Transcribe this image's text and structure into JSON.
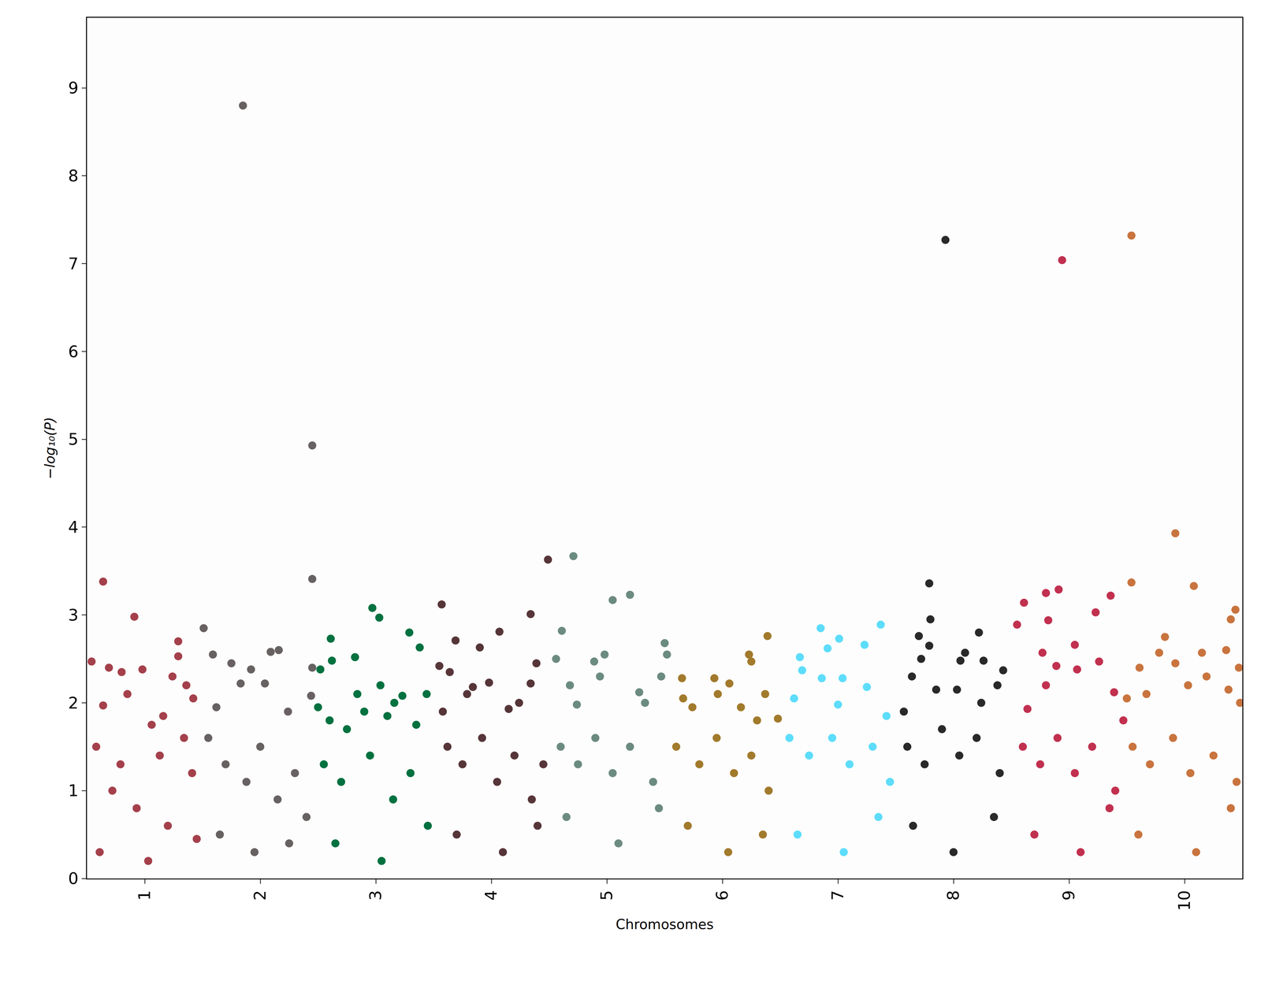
{
  "chart_data": {
    "type": "scatter",
    "xlabel": "Chromosomes",
    "ylabel": "−log₁₀(P)",
    "xlim": [
      0.5,
      10.5
    ],
    "xticks": [
      1,
      2,
      3,
      4,
      5,
      6,
      7,
      8,
      9,
      10
    ],
    "ylim": [
      0,
      9.8
    ],
    "yticks": [
      0,
      1,
      2,
      3,
      4,
      5,
      6,
      7,
      8,
      9
    ],
    "grid": false,
    "marker": "circle",
    "series": [
      {
        "color": "#A4404B",
        "x": [
          0.64,
          0.91,
          0.54,
          1.29,
          1.29,
          0.69,
          0.8,
          0.98,
          1.24,
          1.36,
          0.85,
          0.64,
          1.42,
          1.16,
          1.06,
          0.58,
          0.79,
          1.13,
          1.34,
          0.72,
          0.93,
          1.2,
          1.41,
          0.61,
          1.03,
          1.45
        ],
        "values": [
          3.38,
          2.98,
          2.47,
          2.7,
          2.53,
          2.4,
          2.35,
          2.38,
          2.3,
          2.2,
          2.1,
          1.97,
          2.05,
          1.85,
          1.75,
          1.5,
          1.3,
          1.4,
          1.6,
          1.0,
          0.8,
          0.6,
          1.2,
          0.3,
          0.2,
          0.45
        ]
      },
      {
        "color": "#676162",
        "x": [
          1.85,
          2.45,
          2.45,
          1.51,
          1.59,
          1.75,
          1.92,
          2.16,
          2.09,
          2.04,
          1.83,
          2.45,
          2.44,
          2.24,
          1.62,
          1.55,
          1.7,
          1.88,
          2.0,
          2.15,
          2.3,
          2.4,
          1.65,
          1.95,
          2.25
        ],
        "values": [
          8.8,
          4.93,
          3.41,
          2.85,
          2.55,
          2.45,
          2.38,
          2.6,
          2.58,
          2.22,
          2.22,
          2.4,
          2.08,
          1.9,
          1.95,
          1.6,
          1.3,
          1.1,
          1.5,
          0.9,
          1.2,
          0.7,
          0.5,
          0.3,
          0.4
        ]
      },
      {
        "color": "#027140",
        "x": [
          2.97,
          3.03,
          2.61,
          3.29,
          3.38,
          2.82,
          2.62,
          2.52,
          3.04,
          2.84,
          3.23,
          3.44,
          2.5,
          3.16,
          2.6,
          2.75,
          2.9,
          3.1,
          3.35,
          2.55,
          2.7,
          2.95,
          3.15,
          3.3,
          3.45,
          2.65,
          3.05
        ],
        "values": [
          3.08,
          2.97,
          2.73,
          2.8,
          2.63,
          2.52,
          2.48,
          2.38,
          2.2,
          2.1,
          2.08,
          2.1,
          1.95,
          2.0,
          1.8,
          1.7,
          1.9,
          1.85,
          1.75,
          1.3,
          1.1,
          1.4,
          0.9,
          1.2,
          0.6,
          0.4,
          0.2
        ]
      },
      {
        "color": "#563538",
        "x": [
          4.49,
          3.57,
          4.34,
          3.69,
          4.07,
          3.9,
          3.55,
          4.39,
          3.64,
          3.98,
          3.84,
          4.34,
          3.79,
          4.15,
          3.58,
          4.24,
          3.62,
          3.75,
          3.92,
          4.05,
          4.2,
          4.35,
          4.45,
          3.7,
          4.1,
          4.4
        ],
        "values": [
          3.63,
          3.12,
          3.01,
          2.71,
          2.81,
          2.63,
          2.42,
          2.45,
          2.35,
          2.23,
          2.18,
          2.22,
          2.1,
          1.93,
          1.9,
          2.0,
          1.5,
          1.3,
          1.6,
          1.1,
          1.4,
          0.9,
          1.3,
          0.5,
          0.3,
          0.6
        ]
      },
      {
        "color": "#6C8B80",
        "x": [
          4.71,
          5.2,
          5.05,
          4.61,
          5.5,
          4.98,
          4.56,
          4.89,
          5.52,
          4.68,
          5.47,
          4.94,
          5.28,
          4.74,
          5.33,
          4.6,
          4.75,
          4.9,
          5.05,
          5.2,
          5.4,
          4.65,
          5.1,
          5.45
        ],
        "values": [
          3.67,
          3.23,
          3.17,
          2.82,
          2.68,
          2.55,
          2.5,
          2.47,
          2.55,
          2.2,
          2.3,
          2.3,
          2.12,
          1.98,
          2.0,
          1.5,
          1.3,
          1.6,
          1.2,
          1.5,
          1.1,
          0.7,
          0.4,
          0.8
        ]
      },
      {
        "color": "#A27A2C",
        "x": [
          6.39,
          6.23,
          6.25,
          5.93,
          5.65,
          6.06,
          6.37,
          5.66,
          5.96,
          5.74,
          6.16,
          6.3,
          6.48,
          5.6,
          5.8,
          5.95,
          6.1,
          6.25,
          6.4,
          5.7,
          6.05,
          6.35
        ],
        "values": [
          2.76,
          2.55,
          2.47,
          2.28,
          2.28,
          2.22,
          2.1,
          2.05,
          2.1,
          1.95,
          1.95,
          1.8,
          1.82,
          1.5,
          1.3,
          1.6,
          1.2,
          1.4,
          1.0,
          0.6,
          0.3,
          0.5
        ]
      },
      {
        "color": "#5DDDFB",
        "x": [
          7.37,
          6.85,
          7.01,
          7.23,
          6.67,
          6.91,
          6.69,
          6.86,
          7.04,
          7.25,
          7.0,
          6.62,
          7.42,
          6.58,
          6.75,
          6.95,
          7.1,
          7.3,
          7.45,
          6.65,
          7.05,
          7.35
        ],
        "values": [
          2.89,
          2.85,
          2.73,
          2.66,
          2.52,
          2.62,
          2.37,
          2.28,
          2.28,
          2.18,
          1.98,
          2.05,
          1.85,
          1.6,
          1.4,
          1.6,
          1.3,
          1.5,
          1.1,
          0.5,
          0.3,
          0.7
        ]
      },
      {
        "color": "#292929",
        "x": [
          7.93,
          7.79,
          7.8,
          8.22,
          7.7,
          7.79,
          8.1,
          7.72,
          8.43,
          8.26,
          8.06,
          7.64,
          8.38,
          8.03,
          7.85,
          8.24,
          7.57,
          7.6,
          7.75,
          7.9,
          8.05,
          8.2,
          8.4,
          7.65,
          8.0,
          8.35
        ],
        "values": [
          7.27,
          3.36,
          2.95,
          2.8,
          2.76,
          2.65,
          2.57,
          2.5,
          2.37,
          2.48,
          2.48,
          2.3,
          2.2,
          2.15,
          2.15,
          2.0,
          1.9,
          1.5,
          1.3,
          1.7,
          1.4,
          1.6,
          1.2,
          0.6,
          0.3,
          0.7
        ]
      },
      {
        "color": "#C1304F",
        "x": [
          8.94,
          8.91,
          8.8,
          9.36,
          8.61,
          9.23,
          8.82,
          8.55,
          9.05,
          8.77,
          9.26,
          8.89,
          9.07,
          8.8,
          9.39,
          8.64,
          9.47,
          8.6,
          8.75,
          8.9,
          9.05,
          9.2,
          9.4,
          8.7,
          9.1,
          9.35
        ],
        "values": [
          7.04,
          3.29,
          3.25,
          3.22,
          3.14,
          3.03,
          2.94,
          2.89,
          2.66,
          2.57,
          2.47,
          2.42,
          2.38,
          2.2,
          2.12,
          1.93,
          1.8,
          1.5,
          1.3,
          1.6,
          1.2,
          1.5,
          1.0,
          0.5,
          0.3,
          0.8
        ]
      },
      {
        "color": "#C9743F",
        "x": [
          9.54,
          9.92,
          9.54,
          10.08,
          10.44,
          10.4,
          9.83,
          9.61,
          9.78,
          10.15,
          10.36,
          9.92,
          10.47,
          10.03,
          10.19,
          10.38,
          10.48,
          9.67,
          9.5,
          9.55,
          9.7,
          9.9,
          10.05,
          10.25,
          10.45,
          9.6,
          10.1,
          10.4
        ],
        "values": [
          7.32,
          3.93,
          3.37,
          3.33,
          3.06,
          2.95,
          2.75,
          2.4,
          2.57,
          2.57,
          2.6,
          2.45,
          2.4,
          2.2,
          2.3,
          2.15,
          2.0,
          2.1,
          2.05,
          1.5,
          1.3,
          1.6,
          1.2,
          1.4,
          1.1,
          0.5,
          0.3,
          0.8
        ]
      }
    ]
  }
}
